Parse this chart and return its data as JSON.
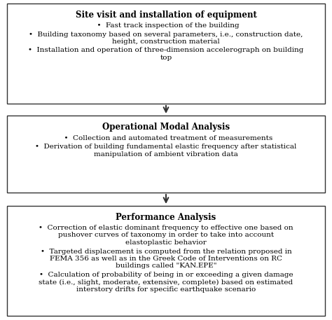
{
  "background_color": "#ffffff",
  "box_border_color": "#333333",
  "arrow_color": "#333333",
  "box1_title": "Site visit and installation of equipment",
  "box1_bullets": [
    [
      "  •  Fast track inspection of the building"
    ],
    [
      "•  Building taxonomy based on several parameters, i.e., construction date,",
      "    height, construction material"
    ],
    [
      "•  Installation and operation of three-dimension accelerograph on building",
      "    top"
    ]
  ],
  "box2_title": "Operational Modal Analysis",
  "box2_bullets": [
    [
      "  •  Collection and automated treatment of measurements"
    ],
    [
      "•  Derivation of building fundamental elastic frequency after statistical",
      "    manipulation of ambient vibration data"
    ]
  ],
  "box3_title": "Performance Analysis",
  "box3_bullets": [
    [
      "•  Correction of elastic dominant frequency to effective one based on",
      "    pushover curves of taxonomy in order to take into account",
      "    elastoplastic behavior"
    ],
    [
      "•  Targeted displacement is computed from the relation proposed in",
      "    FEMA 356 as well as in the Greek Code of Interventions on RC",
      "    buildings called \"KAN.EPE\""
    ],
    [
      "•  Calculation of probability of being in or exceeding a given damage",
      "    state (i.e., slight, moderate, extensive, complete) based on estimated",
      "    interstory drifts for specific earthquake scenario"
    ]
  ],
  "font_size_title": 8.5,
  "font_size_body": 7.5
}
